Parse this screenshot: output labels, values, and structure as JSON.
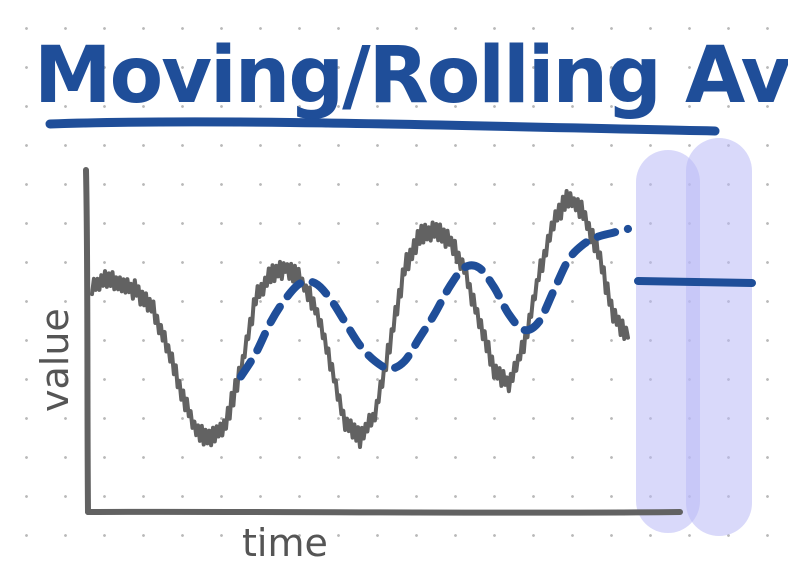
{
  "title": "Moving/Rolling Avg.",
  "chart_data": {
    "type": "line",
    "xlabel": "time",
    "ylabel": "value",
    "series": [
      {
        "role": "raw",
        "color": "#626262",
        "style": "solid, noisy",
        "values": [
          55,
          57,
          56,
          54,
          50,
          40,
          28,
          18,
          16,
          20,
          34,
          52,
          58,
          60,
          57,
          50,
          36,
          20,
          16,
          22,
          40,
          60,
          68,
          70,
          67,
          60,
          46,
          34,
          30,
          40,
          58,
          72,
          78,
          74,
          64,
          48,
          42
        ]
      },
      {
        "role": "average",
        "color": "#1f4e99",
        "style": "dashed",
        "values": [
          null,
          null,
          null,
          null,
          null,
          null,
          null,
          null,
          null,
          null,
          32,
          38,
          46,
          52,
          56,
          56,
          52,
          46,
          40,
          36,
          34,
          36,
          42,
          48,
          55,
          60,
          60,
          55,
          48,
          44,
          46,
          54,
          62,
          66,
          68,
          69,
          70
        ]
      }
    ],
    "window_color": "#b9b9f5"
  }
}
